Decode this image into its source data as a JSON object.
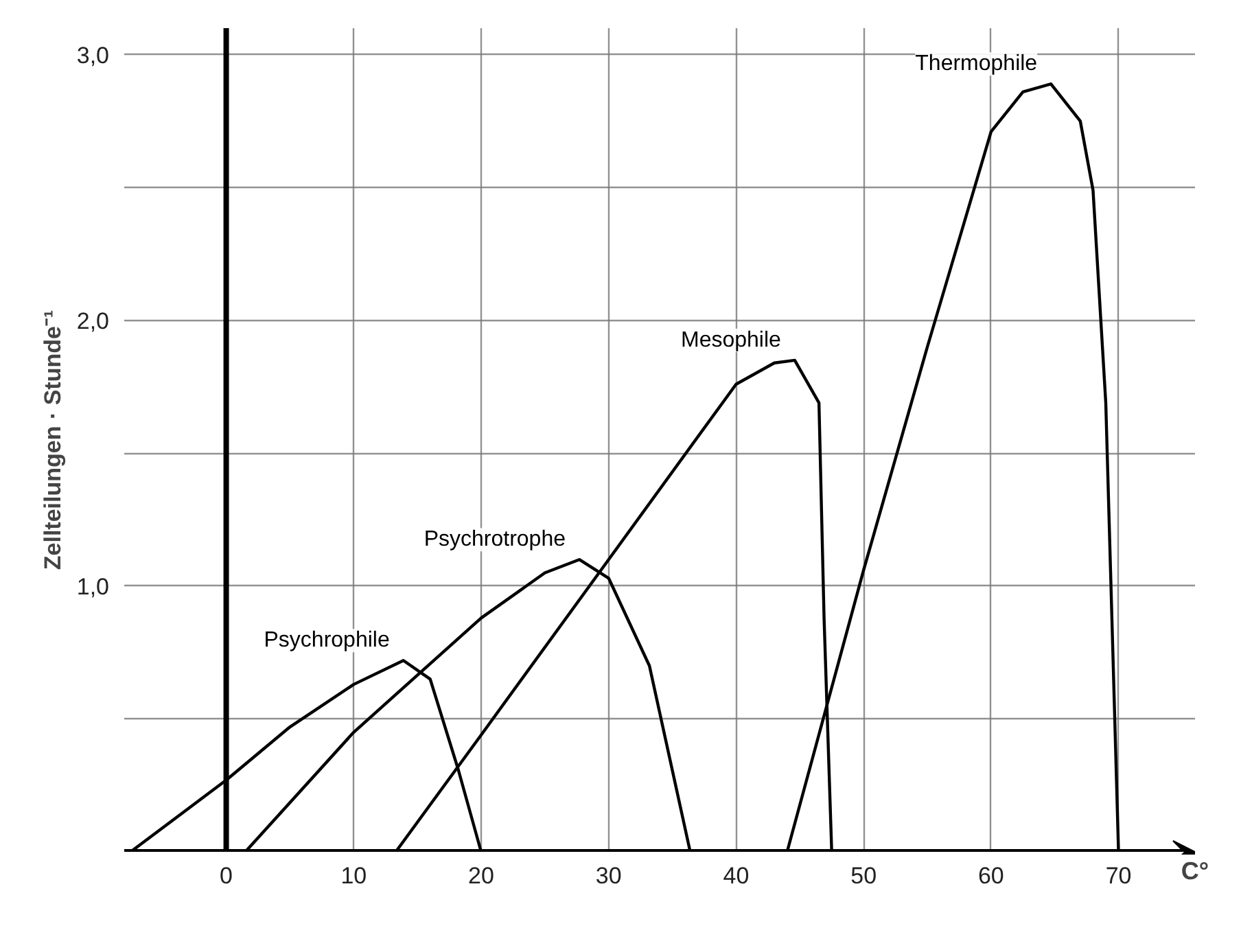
{
  "chart_data": {
    "type": "line",
    "ylabel": "Zellteilungen · Stunde⁻¹",
    "xlabel": "C°",
    "xlim": [
      -8,
      76
    ],
    "ylim": [
      0,
      3.1
    ],
    "xticks": [
      0,
      10,
      20,
      30,
      40,
      50,
      60,
      70
    ],
    "yticks": [
      {
        "value": 0,
        "label": null
      },
      {
        "value": 0.5,
        "label": null
      },
      {
        "value": 1,
        "label": "1,0"
      },
      {
        "value": 1.5,
        "label": null
      },
      {
        "value": 2,
        "label": "2,0"
      },
      {
        "value": 2.5,
        "label": null
      },
      {
        "value": 3,
        "label": "3,0"
      }
    ],
    "grid": true,
    "marker": "none",
    "line_style": "solid",
    "series": [
      {
        "name": "Psychrophile",
        "color": "#000000",
        "x": [
          -7.5,
          0,
          5,
          10,
          13.9,
          16,
          18.2,
          20
        ],
        "values": [
          0,
          0.27,
          0.47,
          0.63,
          0.72,
          0.65,
          0.31,
          0
        ]
      },
      {
        "name": "Psychrotrophe",
        "color": "#000000",
        "x": [
          1.5,
          10,
          20,
          25,
          27.7,
          30,
          33.2,
          36.4
        ],
        "values": [
          0,
          0.45,
          0.88,
          1.05,
          1.1,
          1.03,
          0.7,
          0
        ]
      },
      {
        "name": "Mesophile",
        "color": "#000000",
        "x": [
          13.3,
          20,
          30,
          40,
          43,
          44.6,
          46.5,
          46.9,
          47.5
        ],
        "values": [
          0,
          0.44,
          1.1,
          1.76,
          1.84,
          1.85,
          1.69,
          0.88,
          0
        ]
      },
      {
        "name": "Thermophile",
        "color": "#000000",
        "x": [
          44,
          50,
          55,
          60,
          62.5,
          64.7,
          67,
          68,
          69,
          70
        ],
        "values": [
          0,
          1.06,
          1.9,
          2.71,
          2.86,
          2.89,
          2.75,
          2.49,
          1.69,
          0
        ]
      }
    ]
  }
}
